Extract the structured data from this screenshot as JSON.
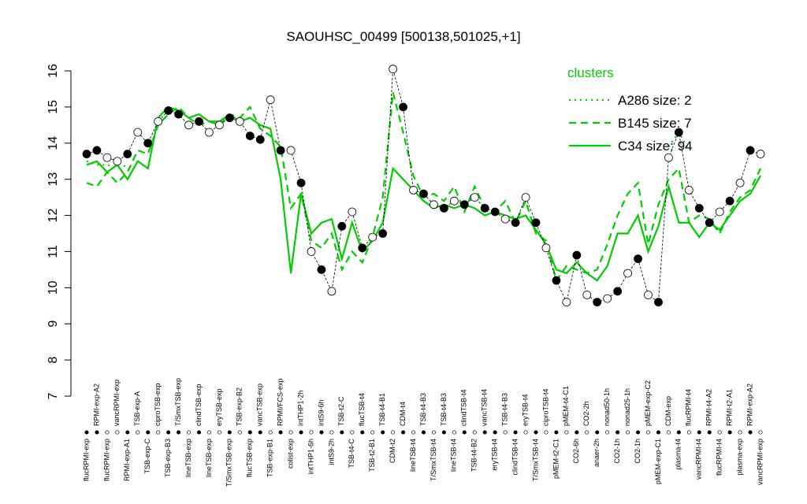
{
  "chart_data": {
    "type": "line",
    "title": "SAOUHSC_00499 [500138,501025,+1]",
    "categories": [
      "flucRPMI-exp",
      "RPMI-exp-A2",
      "flucRPMI-exp",
      "vancRPMI-exp",
      "RPMI-exp-A1",
      "TSB-exp-A",
      "TSB-exp-C",
      "ciproTSB-exp",
      "TSB-exp-B3",
      "T/SmxTSB-exp",
      "lineTSB-exp",
      "clindTSB-exp",
      "lineTSB-exp",
      "eryTSB-exp",
      "T/SmxTSB-exp",
      "TSB-exp-B2",
      "flucTSB-exp",
      "vancTSB-exp",
      "TSB-exp-B1",
      "RPMI/FCS-exp",
      "colist-exp",
      "intTHP1-2h",
      "intTHP1-6h",
      "intS9-6h",
      "intS9-2h",
      "TSB-t2-C",
      "TSB-t4-C",
      "flucTSB-t4",
      "TSB-t2-B1",
      "TSB-t4-B1",
      "CDM-t2",
      "CDM-t4",
      "lineTSB-t4",
      "TSB-t4-B3",
      "T/SmxTSB-t4",
      "TSB-t4-B3",
      "lineTSB-t4",
      "clindTSB-t4",
      "TSB-t4-B2",
      "vancTSB-t4",
      "eryTSB-t4",
      "TSB-t4-B3",
      "clindTSB-t4",
      "eryTSB-t4",
      "T/SmxTSB-t4",
      "ciproTSB-t4",
      "pMEM-t2-C1",
      "pMEM-t4-C1",
      "CO2-6h",
      "CO2-2h",
      "anaer-2h",
      "nonad50-1h",
      "CO2-1h",
      "nonad25-1h",
      "CO2-1h",
      "pMEM-exp-C2",
      "pMEM-exp-C1",
      "CDM-exp",
      "plasma-t4",
      "flucRPMI-t4",
      "vancRPMI-t4",
      "RPMI-t4-A2",
      "flucRPMI-t4",
      "RPMI-t2-A1",
      "plasma-exp",
      "RPMI-exp-A2",
      "vancRPMI-exp"
    ],
    "points": {
      "values": [
        13.7,
        13.8,
        13.6,
        13.5,
        13.7,
        14.3,
        14.0,
        14.6,
        14.9,
        14.8,
        14.5,
        14.6,
        14.3,
        14.5,
        14.7,
        14.6,
        14.2,
        14.1,
        15.2,
        13.8,
        13.8,
        12.9,
        11.0,
        10.5,
        9.9,
        11.7,
        12.1,
        11.1,
        11.4,
        11.5,
        16.05,
        15.0,
        12.7,
        12.6,
        12.3,
        12.2,
        12.4,
        12.3,
        12.5,
        12.2,
        12.1,
        11.9,
        11.8,
        12.5,
        11.8,
        11.1,
        10.2,
        9.6,
        10.9,
        9.8,
        9.6,
        9.7,
        9.9,
        10.4,
        10.8,
        9.8,
        9.6,
        13.6,
        14.3,
        12.7,
        12.2,
        11.8,
        12.1,
        12.4,
        12.9,
        13.8,
        13.7
      ],
      "filled": [
        true,
        true,
        false,
        false,
        true,
        false,
        true,
        false,
        true,
        true,
        false,
        true,
        false,
        false,
        true,
        false,
        true,
        true,
        false,
        true,
        false,
        true,
        false,
        true,
        false,
        true,
        false,
        true,
        false,
        true,
        false,
        true,
        false,
        true,
        false,
        true,
        false,
        true,
        false,
        true,
        true,
        false,
        true,
        false,
        true,
        false,
        true,
        false,
        true,
        false,
        true,
        false,
        true,
        false,
        true,
        false,
        true,
        false,
        true,
        false,
        true,
        true,
        false,
        true,
        false,
        true,
        false
      ]
    },
    "series": [
      {
        "name": "A286 size: 2",
        "color": "#00cc00",
        "dash": "dotted",
        "values": [
          13.5,
          13.4,
          13.4,
          13.3,
          13.4,
          null,
          null,
          null,
          null,
          null,
          null,
          null,
          null,
          null,
          null,
          null,
          null,
          null,
          null,
          null,
          null,
          null,
          null,
          null,
          null,
          null,
          null,
          null,
          null,
          null,
          null,
          null,
          null,
          null,
          null,
          null,
          null,
          null,
          null,
          null,
          null,
          null,
          null,
          null,
          null,
          null,
          null,
          null,
          null,
          null,
          null,
          null,
          null,
          null,
          null,
          null,
          null,
          13.9,
          14.3,
          13.8,
          null,
          null,
          null,
          null,
          null,
          null,
          null
        ]
      },
      {
        "name": "B145 size: 7",
        "color": "#00cc00",
        "dash": "dashed",
        "values": [
          12.9,
          12.8,
          13.2,
          12.9,
          13.2,
          13.8,
          13.7,
          14.5,
          14.8,
          15.0,
          14.7,
          14.5,
          14.6,
          14.5,
          14.8,
          14.7,
          15.0,
          14.4,
          14.2,
          13.9,
          12.2,
          12.6,
          11.3,
          11.1,
          11.5,
          10.5,
          11.0,
          10.7,
          11.4,
          12.5,
          15.4,
          14.3,
          13.1,
          12.5,
          12.6,
          12.4,
          12.8,
          12.1,
          12.8,
          12.2,
          12.1,
          12.4,
          11.8,
          12.4,
          11.5,
          11.3,
          10.2,
          10.6,
          10.5,
          10.4,
          10.5,
          11.2,
          12.0,
          12.6,
          12.9,
          11.2,
          12.3,
          13.0,
          13.3,
          11.8,
          12.0,
          11.9,
          11.5,
          12.1,
          12.5,
          12.7,
          13.3
        ]
      },
      {
        "name": "C34 size: 94",
        "color": "#00cc00",
        "dash": "solid",
        "values": [
          13.4,
          13.5,
          13.2,
          13.4,
          13.0,
          13.5,
          13.3,
          14.7,
          15.0,
          14.9,
          14.7,
          14.8,
          14.6,
          14.6,
          14.8,
          14.6,
          14.7,
          14.5,
          14.4,
          13.0,
          10.4,
          12.6,
          11.5,
          11.8,
          11.9,
          10.8,
          11.8,
          11.0,
          11.3,
          11.8,
          13.3,
          13.0,
          12.7,
          12.4,
          12.2,
          12.3,
          12.2,
          12.3,
          12.2,
          12.0,
          12.1,
          12.0,
          11.9,
          12.0,
          11.6,
          11.2,
          10.5,
          10.4,
          10.7,
          10.4,
          10.2,
          10.6,
          11.5,
          11.5,
          12.0,
          11.0,
          11.7,
          12.8,
          11.8,
          11.8,
          11.4,
          11.8,
          11.6,
          12.0,
          12.4,
          12.6,
          13.1
        ]
      }
    ],
    "legend_title": "clusters",
    "ylim": [
      7,
      16
    ],
    "yticks": [
      7,
      8,
      9,
      10,
      11,
      12,
      13,
      14,
      15,
      16
    ]
  }
}
